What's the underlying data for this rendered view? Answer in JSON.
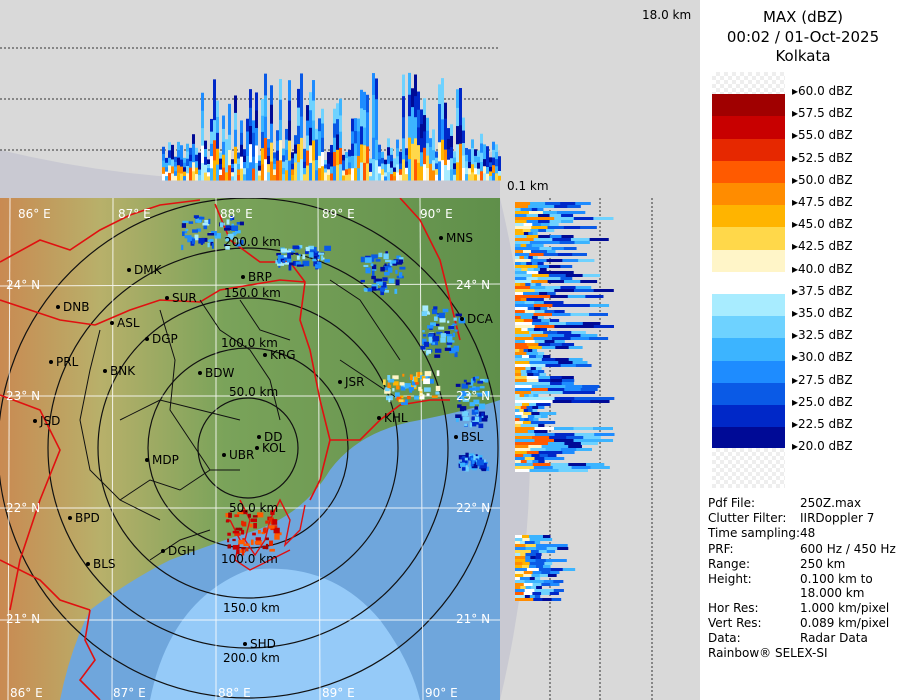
{
  "header": {
    "product": "MAX (dBZ)",
    "datetime": "00:02 / 01-Oct-2025",
    "station": "Kolkata"
  },
  "section_labels": {
    "top_height": "18.0 km",
    "base_height": "0.1 km"
  },
  "color_scale": [
    {
      "label": "60.0 dBZ",
      "color": "#f2f2f2"
    },
    {
      "label": "57.5 dBZ",
      "color": "#a00000"
    },
    {
      "label": "55.0 dBZ",
      "color": "#c80000"
    },
    {
      "label": "52.5 dBZ",
      "color": "#e62800"
    },
    {
      "label": "50.0 dBZ",
      "color": "#ff5a00"
    },
    {
      "label": "47.5 dBZ",
      "color": "#ff8c00"
    },
    {
      "label": "45.0 dBZ",
      "color": "#ffb400"
    },
    {
      "label": "42.5 dBZ",
      "color": "#ffd84a"
    },
    {
      "label": "40.0 dBZ",
      "color": "#fff5c8"
    },
    {
      "label": "37.5 dBZ",
      "color": "#ffffff"
    },
    {
      "label": "35.0 dBZ",
      "color": "#a8ecff"
    },
    {
      "label": "32.5 dBZ",
      "color": "#6ed2ff"
    },
    {
      "label": "30.0 dBZ",
      "color": "#3cb4ff"
    },
    {
      "label": "27.5 dBZ",
      "color": "#1e8cff"
    },
    {
      "label": "25.0 dBZ",
      "color": "#0a5ae6"
    },
    {
      "label": "22.5 dBZ",
      "color": "#0028c8"
    },
    {
      "label": "20.0 dBZ",
      "color": "#000a96"
    }
  ],
  "info": [
    {
      "key": "Pdf File:",
      "value": "250Z.max"
    },
    {
      "key": "Clutter Filter:",
      "value": "IIRDoppler 7"
    },
    {
      "key": "Time sampling:",
      "value": "48"
    },
    {
      "key": "PRF:",
      "value": "600 Hz / 450 Hz"
    },
    {
      "key": "Range:",
      "value": "250 km"
    },
    {
      "key": "Height:",
      "value": "0.100 km to"
    },
    {
      "key": "",
      "value": "18.000 km"
    },
    {
      "key": "Hor Res:",
      "value": "1.000 km/pixel"
    },
    {
      "key": "Vert Res:",
      "value": "0.089 km/pixel"
    },
    {
      "key": "Data:",
      "value": "Radar Data"
    }
  ],
  "credit": "Rainbow® SELEX-SI",
  "map": {
    "lon_labels": [
      "86° E",
      "87° E",
      "88° E",
      "89° E",
      "90° E"
    ],
    "lat_labels": [
      "24° N",
      "23° N",
      "22° N",
      "21° N"
    ],
    "range_rings": [
      "50.0 km",
      "100.0 km",
      "150.0 km",
      "200.0 km"
    ],
    "stations": [
      "MNS",
      "DMK",
      "SUR",
      "DNB",
      "ASL",
      "DGP",
      "PRL",
      "BNK",
      "BDW",
      "KRG",
      "JSR",
      "DCA",
      "KHL",
      "JSD",
      "DD",
      "KOL",
      "UBR",
      "MDP",
      "BSL",
      "BPD",
      "DGH",
      "BLS",
      "SHD",
      "BRP"
    ]
  }
}
